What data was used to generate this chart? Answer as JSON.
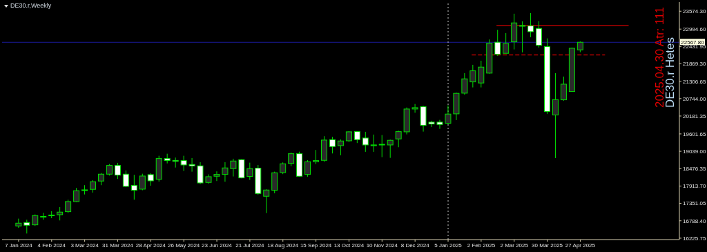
{
  "chart_data": {
    "type": "candlestick",
    "title": "DE30.r,Weekly",
    "color": "#00e000",
    "x": [
      "2024-01-07",
      "2024-01-14",
      "2024-01-21",
      "2024-01-28",
      "2024-02-04",
      "2024-02-11",
      "2024-02-18",
      "2024-02-25",
      "2024-03-03",
      "2024-03-10",
      "2024-03-17",
      "2024-03-24",
      "2024-03-31",
      "2024-04-07",
      "2024-04-14",
      "2024-04-21",
      "2024-04-28",
      "2024-05-05",
      "2024-05-12",
      "2024-05-19",
      "2024-05-26",
      "2024-06-02",
      "2024-06-09",
      "2024-06-16",
      "2024-06-23",
      "2024-06-30",
      "2024-07-07",
      "2024-07-14",
      "2024-07-21",
      "2024-07-28",
      "2024-08-04",
      "2024-08-11",
      "2024-08-18",
      "2024-08-25",
      "2024-09-01",
      "2024-09-08",
      "2024-09-15",
      "2024-09-22",
      "2024-09-29",
      "2024-10-06",
      "2024-10-13",
      "2024-10-20",
      "2024-10-27",
      "2024-11-03",
      "2024-11-10",
      "2024-11-17",
      "2024-11-24",
      "2024-12-01",
      "2024-12-08",
      "2024-12-15",
      "2024-12-22",
      "2024-12-29",
      "2025-01-05",
      "2025-01-12",
      "2025-01-19",
      "2025-01-26",
      "2025-02-02",
      "2025-02-09",
      "2025-02-16",
      "2025-02-23",
      "2025-03-02",
      "2025-03-09",
      "2025-03-16",
      "2025-03-23",
      "2025-03-30",
      "2025-04-06",
      "2025-04-13",
      "2025-04-20",
      "2025-04-27"
    ],
    "ohlc": [
      [
        16621,
        16859,
        16561,
        16711
      ],
      [
        16733,
        16823,
        16376,
        16644
      ],
      [
        16657,
        16993,
        16622,
        16957
      ],
      [
        16920,
        17046,
        16823,
        16930
      ],
      [
        16960,
        17098,
        16874,
        16975
      ],
      [
        16986,
        17232,
        16800,
        17069
      ],
      [
        17083,
        17471,
        17046,
        17411
      ],
      [
        17411,
        17851,
        17396,
        17762
      ],
      [
        17780,
        17941,
        17641,
        17790
      ],
      [
        17807,
        18104,
        17701,
        18053
      ],
      [
        18075,
        18334,
        17941,
        18298
      ],
      [
        18298,
        18625,
        18254,
        18580
      ],
      [
        18580,
        18663,
        18142,
        18267
      ],
      [
        18298,
        18417,
        17880,
        17903
      ],
      [
        17932,
        18276,
        17471,
        17776
      ],
      [
        17813,
        18312,
        17776,
        18238
      ],
      [
        18283,
        18327,
        17925,
        18082
      ],
      [
        18133,
        18893,
        18059,
        18804
      ],
      [
        18804,
        18960,
        18647,
        18737
      ],
      [
        18743,
        18835,
        18512,
        18714
      ],
      [
        18737,
        18893,
        18401,
        18596
      ],
      [
        18612,
        18819,
        18379,
        18567
      ],
      [
        18567,
        18685,
        17977,
        18014
      ],
      [
        18030,
        18290,
        17992,
        18216
      ],
      [
        18231,
        18388,
        18075,
        18290
      ],
      [
        18290,
        18685,
        18053,
        18500
      ],
      [
        18478,
        18797,
        18224,
        18723
      ],
      [
        18768,
        18782,
        18164,
        18178
      ],
      [
        18224,
        18670,
        18111,
        18478
      ],
      [
        18492,
        18596,
        17634,
        17672
      ],
      [
        17583,
        17806,
        17038,
        17784
      ],
      [
        17776,
        18379,
        17679,
        18343
      ],
      [
        18350,
        18679,
        18299,
        18634
      ],
      [
        18647,
        18998,
        18558,
        18960
      ],
      [
        18960,
        19027,
        18216,
        18231
      ],
      [
        18290,
        18753,
        18216,
        18701
      ],
      [
        18701,
        19081,
        18625,
        18737
      ],
      [
        18746,
        19528,
        18701,
        19401
      ],
      [
        19416,
        19506,
        18969,
        19193
      ],
      [
        19222,
        19423,
        18909,
        19372
      ],
      [
        19378,
        19692,
        19341,
        19669
      ],
      [
        19676,
        19692,
        19305,
        19416
      ],
      [
        19468,
        19669,
        19021,
        19244
      ],
      [
        19220,
        19580,
        19021,
        19245
      ],
      [
        19250,
        19564,
        18849,
        19265
      ],
      [
        19244,
        19416,
        18826,
        19394
      ],
      [
        19439,
        19707,
        19170,
        19676
      ],
      [
        19669,
        20458,
        19586,
        20407
      ],
      [
        20407,
        20570,
        20288,
        20452
      ],
      [
        20481,
        20512,
        19676,
        19877
      ],
      [
        19982,
        20027,
        19826,
        19922
      ],
      [
        19982,
        20056,
        19765,
        19908
      ],
      [
        19944,
        20526,
        19915,
        20244
      ],
      [
        20251,
        20937,
        20049,
        20915
      ],
      [
        20921,
        21570,
        20870,
        21384
      ],
      [
        21286,
        21838,
        21107,
        21644
      ],
      [
        21250,
        21972,
        21107,
        21764
      ],
      [
        21570,
        22659,
        21554,
        22538
      ],
      [
        22569,
        22972,
        22129,
        22180
      ],
      [
        22211,
        22867,
        22211,
        22531
      ],
      [
        22583,
        23493,
        22337,
        23195
      ],
      [
        23100,
        23247,
        22241,
        23110
      ],
      [
        23097,
        23515,
        22733,
        22911
      ],
      [
        23016,
        23254,
        22397,
        22471
      ],
      [
        22426,
        22694,
        20250,
        20324
      ],
      [
        20213,
        21570,
        18819,
        20713
      ],
      [
        20705,
        21458,
        20675,
        21212
      ],
      [
        20973,
        22397,
        20973,
        22375
      ],
      [
        22323,
        22598,
        22247,
        22567.8
      ]
    ],
    "series": [
      {
        "type": "line",
        "color": "#b00000",
        "line_style": "solid",
        "x": [
          "2025-02-15",
          "2025-06-07"
        ],
        "values": [
          23110,
          23110
        ]
      },
      {
        "type": "line",
        "color": "#b00000",
        "line_style": "dashed",
        "x": [
          "2025-01-25",
          "2025-05-18"
        ],
        "values": [
          22160,
          22160
        ]
      }
    ],
    "ref_lines": [
      {
        "axis": "y",
        "value": 22567.8,
        "label": "22567.80",
        "color": "#1a1a9a",
        "line_style": "solid"
      },
      {
        "axis": "x",
        "value": "2025-01-05",
        "label": null,
        "color": "#c8c8c8",
        "line_style": "dotted"
      }
    ],
    "annotations": [
      "2025.04.30 Atr: 111",
      "DE30.r Hetes"
    ],
    "xlim": [
      "2023-12-24",
      "2025-07-20"
    ],
    "xticks": [
      {
        "value": "2024-01-07",
        "label": "7 Jan 2024"
      },
      {
        "value": "2024-02-04",
        "label": "4 Feb 2024"
      },
      {
        "value": "2024-03-03",
        "label": "3 Mar 2024"
      },
      {
        "value": "2024-03-31",
        "label": "31 Mar 2024"
      },
      {
        "value": "2024-04-28",
        "label": "28 Apr 2024"
      },
      {
        "value": "2024-05-26",
        "label": "26 May 2024"
      },
      {
        "value": "2024-06-23",
        "label": "23 Jun 2024"
      },
      {
        "value": "2024-07-21",
        "label": "21 Jul 2024"
      },
      {
        "value": "2024-08-18",
        "label": "18 Aug 2024"
      },
      {
        "value": "2024-09-15",
        "label": "15 Sep 2024"
      },
      {
        "value": "2024-10-13",
        "label": "13 Oct 2024"
      },
      {
        "value": "2024-11-10",
        "label": "10 Nov 2024"
      },
      {
        "value": "2024-12-08",
        "label": "8 Dec 2024"
      },
      {
        "value": "2025-01-05",
        "label": "5 Jan 2025"
      },
      {
        "value": "2025-02-02",
        "label": "2 Feb 2025"
      },
      {
        "value": "2025-03-02",
        "label": "2 Mar 2025"
      },
      {
        "value": "2025-03-30",
        "label": "30 Mar 2025"
      },
      {
        "value": "2025-04-27",
        "label": "27 Apr 2025"
      }
    ],
    "ylim": [
      16180,
      23870
    ],
    "yticks": [
      {
        "value": 16225.75,
        "label": "16225.75"
      },
      {
        "value": 16788.4,
        "label": "16788.40"
      },
      {
        "value": 17351.05,
        "label": "17351.05"
      },
      {
        "value": 17913.7,
        "label": "17913.70"
      },
      {
        "value": 18476.35,
        "label": "18476.35"
      },
      {
        "value": 19039,
        "label": "19039.00"
      },
      {
        "value": 19601.65,
        "label": "19601.65"
      },
      {
        "value": 20181.35,
        "label": "20181.35"
      },
      {
        "value": 20744,
        "label": "20744.00"
      },
      {
        "value": 21306.65,
        "label": "21306.65"
      },
      {
        "value": 21869.3,
        "label": "21869.30"
      },
      {
        "value": 22431.95,
        "label": "22431.95"
      },
      {
        "value": 22994.6,
        "label": "22994.60"
      },
      {
        "value": 23574.3,
        "label": "23574.30"
      }
    ],
    "grid": false,
    "legend": false
  }
}
